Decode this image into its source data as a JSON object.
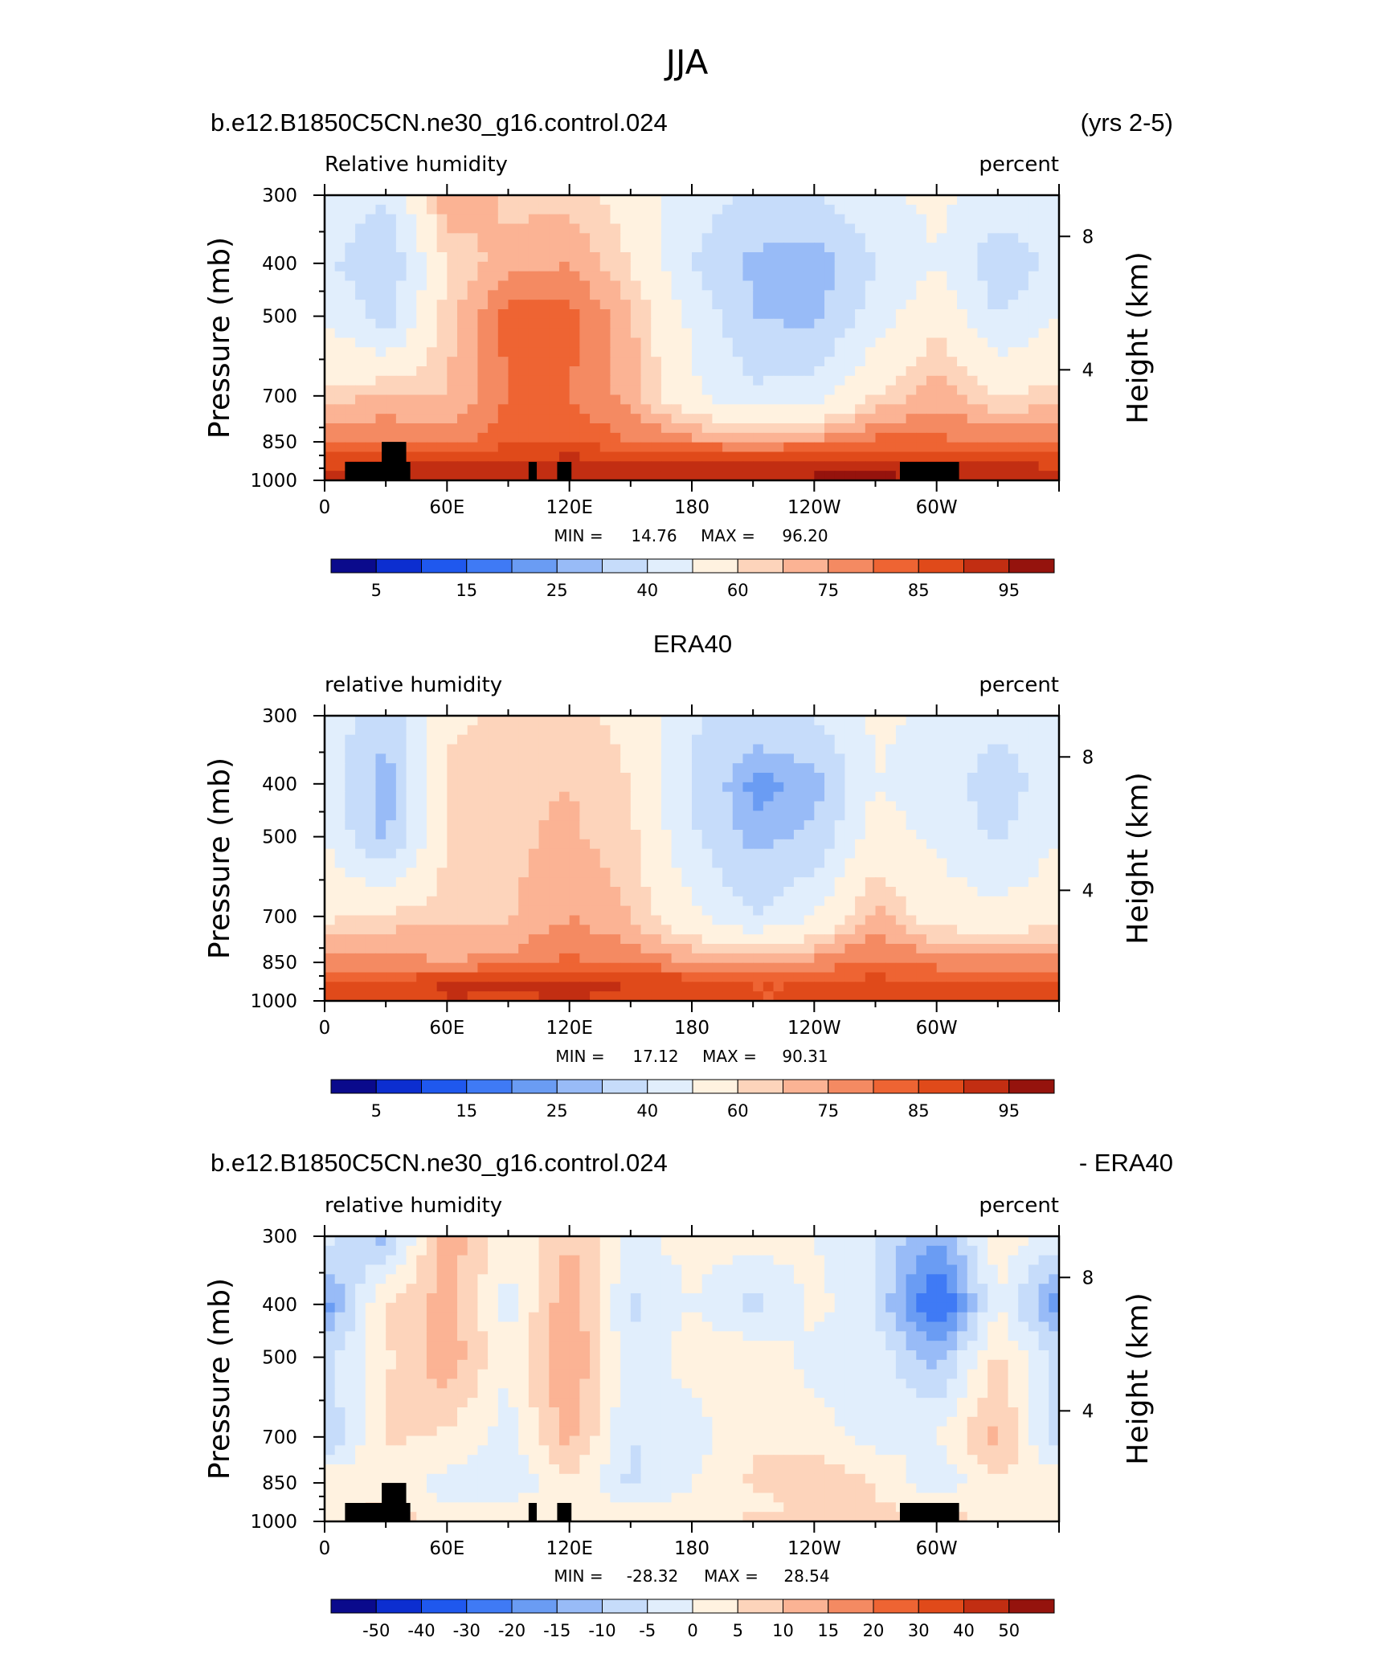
{
  "figure_title": "JJA",
  "colors": {
    "palette": [
      "#0a0a8c",
      "#0c2ed0",
      "#1f58ee",
      "#3f7af5",
      "#6a9cf3",
      "#98bbf7",
      "#c6dcfa",
      "#e1eefc",
      "#fff2e0",
      "#fdd4bb",
      "#fbb394",
      "#f48a62",
      "#ee6433",
      "#e04a1a",
      "#c22e12",
      "#95130d"
    ],
    "land": "#000000"
  },
  "chart_data": [
    {
      "type": "heatmap",
      "header_left": "b.e12.B1850C5CN.ne30_g16.control.024",
      "header_right": "(yrs 2-5)",
      "left_label": "Relative humidity",
      "right_label": "percent",
      "ylabel": "Pressure (mb)",
      "ylabel_right": "Height (km)",
      "xticks": [
        "0",
        "60E",
        "120E",
        "180",
        "120W",
        "60W"
      ],
      "yticks": [
        "300",
        "400",
        "500",
        "700",
        "850",
        "1000"
      ],
      "height_ticks": [
        "8",
        "4"
      ],
      "x_range": [
        0,
        360
      ],
      "pressure_range": [
        300,
        1000
      ],
      "pressure_axis": "log",
      "min_label": "MIN =",
      "min_value": "14.76",
      "max_label": "MAX =",
      "max_value": "96.20",
      "levels": [
        "5",
        "15",
        "25",
        "40",
        "60",
        "75",
        "85",
        "95"
      ],
      "levels_numeric": [
        5,
        10,
        15,
        20,
        25,
        30,
        40,
        50,
        60,
        65,
        70,
        75,
        80,
        85,
        90,
        95
      ],
      "topography_mask": true,
      "field": {
        "x": [
          0,
          30,
          60,
          90,
          120,
          150,
          180,
          210,
          240,
          270,
          300,
          330,
          360
        ],
        "p": [
          300,
          400,
          500,
          700,
          850,
          925,
          1000
        ],
        "values": [
          [
            48,
            40,
            71,
            63,
            63,
            56,
            45,
            38,
            40,
            48,
            52,
            46,
            48
          ],
          [
            42,
            32,
            60,
            68,
            70,
            60,
            40,
            28,
            25,
            40,
            50,
            33,
            42
          ],
          [
            50,
            35,
            63,
            77,
            77,
            66,
            48,
            30,
            27,
            45,
            58,
            40,
            50
          ],
          [
            62,
            66,
            65,
            75,
            75,
            68,
            52,
            42,
            45,
            60,
            68,
            60,
            62
          ],
          [
            75,
            75,
            72,
            79,
            80,
            75,
            72,
            70,
            72,
            77,
            76,
            75,
            75
          ],
          [
            83,
            86,
            86,
            86,
            87,
            87,
            86,
            86,
            87,
            88,
            85,
            86,
            83
          ],
          [
            88,
            89,
            90,
            91,
            91,
            91,
            90,
            90,
            91,
            92,
            89,
            90,
            88
          ]
        ]
      }
    },
    {
      "type": "heatmap",
      "header_center": "ERA40",
      "left_label": "relative humidity",
      "right_label": "percent",
      "ylabel": "Pressure (mb)",
      "ylabel_right": "Height (km)",
      "xticks": [
        "0",
        "60E",
        "120E",
        "180",
        "120W",
        "60W"
      ],
      "yticks": [
        "300",
        "400",
        "500",
        "700",
        "850",
        "1000"
      ],
      "height_ticks": [
        "8",
        "4"
      ],
      "x_range": [
        0,
        360
      ],
      "pressure_range": [
        300,
        1000
      ],
      "pressure_axis": "log",
      "min_label": "MIN =",
      "min_value": "17.12",
      "max_label": "MAX =",
      "max_value": "90.31",
      "levels": [
        "5",
        "15",
        "25",
        "40",
        "60",
        "75",
        "85",
        "95"
      ],
      "levels_numeric": [
        5,
        10,
        15,
        20,
        25,
        30,
        40,
        50,
        60,
        65,
        70,
        75,
        80,
        85,
        90,
        95
      ],
      "topography_mask": false,
      "field": {
        "x": [
          0,
          30,
          60,
          90,
          120,
          150,
          180,
          210,
          240,
          270,
          300,
          330,
          360
        ],
        "p": [
          300,
          400,
          500,
          700,
          850,
          925,
          1000
        ],
        "values": [
          [
            48,
            32,
            58,
            62,
            62,
            58,
            42,
            35,
            40,
            52,
            48,
            42,
            48
          ],
          [
            45,
            25,
            62,
            64,
            65,
            60,
            38,
            23,
            26,
            50,
            44,
            35,
            45
          ],
          [
            50,
            28,
            60,
            64,
            66,
            62,
            42,
            27,
            32,
            55,
            48,
            38,
            50
          ],
          [
            58,
            62,
            64,
            64,
            70,
            65,
            52,
            40,
            50,
            67,
            56,
            53,
            58
          ],
          [
            72,
            72,
            70,
            72,
            76,
            74,
            70,
            68,
            72,
            76,
            73,
            72,
            72
          ],
          [
            82,
            80,
            86,
            86,
            87,
            85,
            83,
            80,
            80,
            82,
            80,
            81,
            82
          ],
          [
            84,
            80,
            85,
            84,
            85,
            84,
            82,
            80,
            80,
            82,
            80,
            82,
            84
          ]
        ]
      }
    },
    {
      "type": "heatmap",
      "header_left": "b.e12.B1850C5CN.ne30_g16.control.024",
      "header_right": "- ERA40",
      "left_label": "relative humidity",
      "right_label": "percent",
      "ylabel": "Pressure (mb)",
      "ylabel_right": "Height (km)",
      "xticks": [
        "0",
        "60E",
        "120E",
        "180",
        "120W",
        "60W"
      ],
      "yticks": [
        "300",
        "400",
        "500",
        "700",
        "850",
        "1000"
      ],
      "height_ticks": [
        "8",
        "4"
      ],
      "x_range": [
        0,
        360
      ],
      "pressure_range": [
        300,
        1000
      ],
      "pressure_axis": "log",
      "min_label": "MIN =",
      "min_value": "-28.32",
      "max_label": "MAX =",
      "max_value": "28.54",
      "levels": [
        "-50",
        "-40",
        "-30",
        "-20",
        "-15",
        "-10",
        "-5",
        "0",
        "5",
        "10",
        "15",
        "20",
        "30",
        "40",
        "50"
      ],
      "levels_numeric": [
        -50,
        -40,
        -30,
        -20,
        -15,
        -10,
        -5,
        0,
        5,
        10,
        15,
        20,
        30,
        40,
        50
      ],
      "topography_mask": true,
      "field": {
        "x": [
          0,
          30,
          60,
          90,
          120,
          150,
          180,
          210,
          240,
          270,
          300,
          330,
          360
        ],
        "p": [
          300,
          400,
          500,
          700,
          850,
          925,
          1000
        ],
        "values": [
          [
            -2,
            -12,
            14,
            1,
            10,
            -1,
            2,
            3,
            0,
            -5,
            -15,
            3,
            -2
          ],
          [
            -18,
            6,
            12,
            -2,
            14,
            -6,
            0,
            -7,
            2,
            -5,
            -28,
            0,
            -18
          ],
          [
            -6,
            4,
            14,
            0,
            16,
            -4,
            3,
            4,
            -2,
            -2,
            -12,
            6,
            -6
          ],
          [
            -10,
            6,
            4,
            -2,
            12,
            -5,
            -3,
            4,
            2,
            -2,
            0,
            12,
            -10
          ],
          [
            4,
            2,
            -2,
            -4,
            4,
            -6,
            0,
            6,
            10,
            5,
            -4,
            4,
            4
          ],
          [
            2,
            6,
            -1,
            1,
            2,
            0,
            1,
            3,
            6,
            5,
            3,
            4,
            2
          ],
          [
            3,
            8,
            3,
            5,
            4,
            5,
            5,
            6,
            8,
            7,
            6,
            5,
            3
          ]
        ]
      }
    }
  ]
}
